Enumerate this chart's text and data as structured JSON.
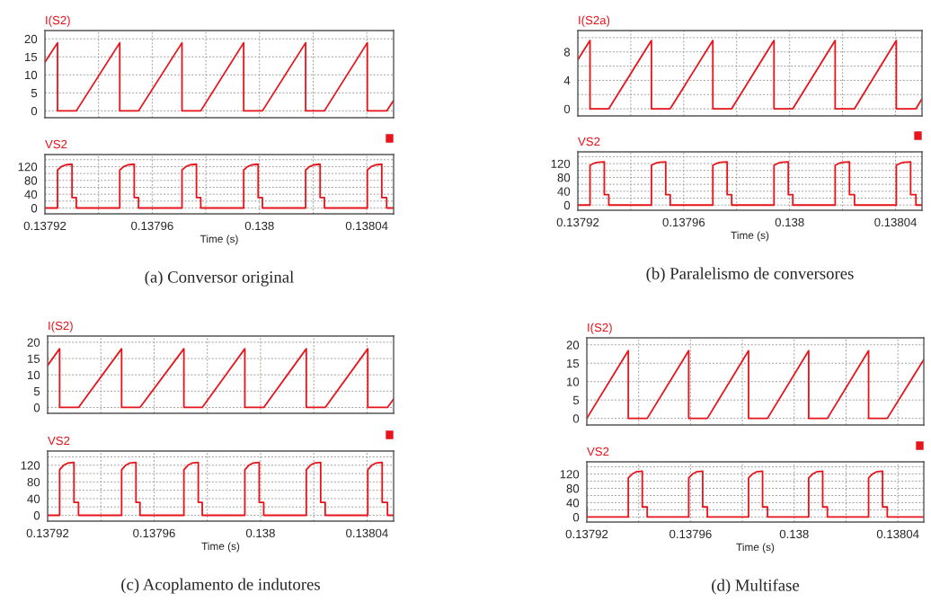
{
  "chart_data": [
    {
      "type": "line",
      "title": "I(S2)",
      "xlim": [
        0.13792,
        0.13805
      ],
      "ylim": [
        -1.9,
        22.3
      ],
      "xticks": [
        0.13792,
        {
          "value": 0.13794,
          "label": null
        },
        0.13796,
        {
          "value": 0.13798,
          "label": null
        },
        0.138,
        {
          "value": 0.13802,
          "label": null
        },
        0.13804
      ],
      "yticks": [
        0,
        5,
        10,
        15,
        20
      ],
      "grid": true,
      "tick_labels": "y",
      "series": [
        {
          "color": "#e8141c",
          "x": [
            0.13792,
            0.1379247,
            0.1379247,
            0.1379317,
            0.1379479,
            0.1379479,
            0.1379549,
            0.1379711,
            0.1379711,
            0.1379781,
            0.1379941,
            0.1379941,
            0.1380011,
            0.1380172,
            0.1380172,
            0.1380242,
            0.1380402,
            0.1380402,
            0.1380474,
            0.13805
          ],
          "values": [
            13.5,
            18.9,
            0,
            0,
            18.9,
            0,
            0,
            18.9,
            0,
            0,
            18.9,
            0,
            0,
            18.9,
            0,
            0,
            18.9,
            0,
            0,
            2.9
          ]
        }
      ]
    },
    {
      "type": "line",
      "title": "VS2",
      "xlabel": "Time (s)",
      "annotations": [
        "(a) Conversor original"
      ],
      "xlim": [
        0.13792,
        0.13805
      ],
      "ylim": [
        -17,
        155
      ],
      "xticks": [
        0.13792,
        {
          "value": 0.13794,
          "label": null
        },
        0.13796,
        {
          "value": 0.13798,
          "label": null
        },
        0.138,
        {
          "value": 0.13802,
          "label": null
        },
        0.13804
      ],
      "yticks": [
        0,
        {
          "value": 20,
          "label": null
        },
        40,
        {
          "value": 60,
          "label": null
        },
        80,
        {
          "value": 100,
          "label": null
        },
        120,
        {
          "value": 140,
          "label": null
        }
      ],
      "grid": true,
      "series": [
        {
          "color": "#e8141c",
          "x": [
            0.13792,
            0.1379247,
            0.1379247,
            0.1379262,
            0.1379277,
            0.1379301,
            0.1379301,
            0.1379317,
            0.1379317,
            0.1379479,
            0.1379479,
            0.1379494,
            0.1379509,
            0.1379533,
            0.1379533,
            0.1379549,
            0.1379549,
            0.1379711,
            0.1379711,
            0.1379726,
            0.1379741,
            0.1379765,
            0.1379765,
            0.1379781,
            0.1379781,
            0.1379941,
            0.1379941,
            0.1379956,
            0.1379971,
            0.1379995,
            0.1379995,
            0.1380011,
            0.1380011,
            0.1380172,
            0.1380172,
            0.1380187,
            0.1380202,
            0.1380226,
            0.1380226,
            0.1380242,
            0.1380242,
            0.1380402,
            0.1380402,
            0.1380417,
            0.1380432,
            0.1380456,
            0.1380456,
            0.1380474,
            0.1380474,
            0.13805
          ],
          "values": [
            0,
            0,
            110,
            120,
            125,
            127,
            30,
            30,
            0,
            0,
            110,
            120,
            125,
            127,
            30,
            30,
            0,
            0,
            110,
            120,
            125,
            127,
            30,
            30,
            0,
            0,
            110,
            120,
            125,
            127,
            30,
            30,
            0,
            0,
            110,
            120,
            125,
            127,
            30,
            30,
            0,
            0,
            110,
            120,
            125,
            127,
            30,
            30,
            0,
            0
          ]
        }
      ]
    },
    {
      "type": "line",
      "title": "I(S2a)",
      "xlim": [
        0.13792,
        0.13805
      ],
      "ylim": [
        -1,
        11
      ],
      "xticks": [
        0.13792,
        {
          "value": 0.13794,
          "label": null
        },
        0.13796,
        {
          "value": 0.13798,
          "label": null
        },
        0.138,
        {
          "value": 0.13802,
          "label": null
        },
        0.13804
      ],
      "yticks": [
        0,
        {
          "value": 2,
          "label": null
        },
        4,
        {
          "value": 6,
          "label": null
        },
        8,
        {
          "value": 10,
          "label": null
        }
      ],
      "grid": true,
      "tick_labels": "y",
      "series": [
        {
          "color": "#e8141c",
          "x": [
            0.13792,
            0.1379246,
            0.1379246,
            0.1379317,
            0.1379478,
            0.1379478,
            0.1379549,
            0.137971,
            0.137971,
            0.1379781,
            0.1379941,
            0.1379941,
            0.1380012,
            0.1380172,
            0.1380172,
            0.1380245,
            0.1380403,
            0.1380403,
            0.1380477,
            0.13805
          ],
          "values": [
            6.9,
            9.6,
            0,
            0,
            9.6,
            0,
            0,
            9.6,
            0,
            0,
            9.6,
            0,
            0,
            9.6,
            0,
            0,
            9.6,
            0,
            0,
            1.4
          ]
        }
      ]
    },
    {
      "type": "line",
      "title": "VS2",
      "xlabel": "Time (s)",
      "annotations": [
        "(b) Paralelismo de conversores"
      ],
      "xlim": [
        0.13792,
        0.13805
      ],
      "ylim": [
        -15,
        154
      ],
      "xticks": [
        0.13792,
        {
          "value": 0.13794,
          "label": null
        },
        0.13796,
        {
          "value": 0.13798,
          "label": null
        },
        0.138,
        {
          "value": 0.13802,
          "label": null
        },
        0.13804
      ],
      "yticks": [
        0,
        {
          "value": 20,
          "label": null
        },
        40,
        {
          "value": 60,
          "label": null
        },
        80,
        {
          "value": 100,
          "label": null
        },
        120,
        {
          "value": 140,
          "label": null
        }
      ],
      "grid": true,
      "series": [
        {
          "color": "#e8141c",
          "x": [
            0.13792,
            0.1379246,
            0.1379246,
            0.1379261,
            0.1379276,
            0.13793,
            0.13793,
            0.1379317,
            0.1379317,
            0.1379478,
            0.1379478,
            0.1379493,
            0.1379508,
            0.1379532,
            0.1379532,
            0.1379549,
            0.1379549,
            0.137971,
            0.137971,
            0.1379725,
            0.137974,
            0.1379764,
            0.1379764,
            0.1379781,
            0.1379781,
            0.1379941,
            0.1379941,
            0.1379956,
            0.1379971,
            0.1379995,
            0.1379995,
            0.1380012,
            0.1380012,
            0.1380172,
            0.1380172,
            0.1380187,
            0.1380202,
            0.1380226,
            0.1380226,
            0.1380245,
            0.1380245,
            0.1380403,
            0.1380403,
            0.1380418,
            0.1380433,
            0.1380457,
            0.1380457,
            0.1380477,
            0.1380477,
            0.13805
          ],
          "values": [
            0,
            0,
            115,
            121,
            124,
            125,
            30,
            30,
            0,
            0,
            115,
            121,
            124,
            125,
            30,
            30,
            0,
            0,
            115,
            121,
            124,
            125,
            30,
            30,
            0,
            0,
            115,
            121,
            124,
            125,
            30,
            30,
            0,
            0,
            115,
            121,
            124,
            125,
            30,
            30,
            0,
            0,
            115,
            121,
            124,
            125,
            30,
            30,
            0,
            0
          ]
        }
      ]
    },
    {
      "type": "line",
      "title": "I(S2)",
      "xlim": [
        0.13792,
        0.13805
      ],
      "ylim": [
        -1.8,
        21.9
      ],
      "xticks": [
        0.13792,
        {
          "value": 0.13794,
          "label": null
        },
        0.13796,
        {
          "value": 0.13798,
          "label": null
        },
        0.138,
        {
          "value": 0.13802,
          "label": null
        },
        0.13804
      ],
      "yticks": [
        0,
        5,
        10,
        15,
        20
      ],
      "grid": true,
      "tick_labels": "y",
      "series": [
        {
          "color": "#e8141c",
          "x": [
            0.13792,
            0.1379245,
            0.1379245,
            0.1379316,
            0.1379478,
            0.1379478,
            0.1379547,
            0.1379712,
            0.1379712,
            0.1379781,
            0.1379941,
            0.1379941,
            0.1380012,
            0.1380172,
            0.1380172,
            0.1380243,
            0.1380403,
            0.1380403,
            0.1380477,
            0.13805
          ],
          "values": [
            12.9,
            18,
            0,
            0,
            18,
            0,
            0,
            18,
            0,
            0,
            18,
            0,
            0,
            18,
            0,
            0,
            18,
            0,
            0,
            2.6
          ]
        }
      ]
    },
    {
      "type": "line",
      "title": "VS2",
      "xlabel": "Time (s)",
      "annotations": [
        "(c) Acoplamento de indutores"
      ],
      "xlim": [
        0.13792,
        0.13805
      ],
      "ylim": [
        -14,
        154
      ],
      "xticks": [
        0.13792,
        {
          "value": 0.13794,
          "label": null
        },
        0.13796,
        {
          "value": 0.13798,
          "label": null
        },
        0.138,
        {
          "value": 0.13802,
          "label": null
        },
        0.13804
      ],
      "yticks": [
        0,
        {
          "value": 20,
          "label": null
        },
        40,
        {
          "value": 60,
          "label": null
        },
        80,
        {
          "value": 100,
          "label": null
        },
        120,
        {
          "value": 140,
          "label": null
        }
      ],
      "grid": true,
      "series": [
        {
          "color": "#e8141c",
          "x": [
            0.13792,
            0.1379245,
            0.1379245,
            0.137926,
            0.1379275,
            0.1379299,
            0.1379299,
            0.1379316,
            0.1379316,
            0.1379478,
            0.1379478,
            0.1379493,
            0.1379508,
            0.1379532,
            0.1379532,
            0.1379547,
            0.1379547,
            0.1379712,
            0.1379712,
            0.1379727,
            0.1379742,
            0.1379766,
            0.1379766,
            0.1379781,
            0.1379781,
            0.1379941,
            0.1379941,
            0.1379956,
            0.1379971,
            0.1379995,
            0.1379995,
            0.1380012,
            0.1380012,
            0.1380172,
            0.1380172,
            0.1380187,
            0.1380202,
            0.1380226,
            0.1380226,
            0.1380243,
            0.1380243,
            0.1380403,
            0.1380403,
            0.1380418,
            0.1380433,
            0.1380457,
            0.1380457,
            0.1380477,
            0.1380477,
            0.13805
          ],
          "values": [
            0,
            0,
            109,
            120,
            125,
            127,
            31,
            31,
            0,
            0,
            109,
            120,
            125,
            127,
            31,
            31,
            0,
            0,
            109,
            120,
            125,
            127,
            31,
            31,
            0,
            0,
            109,
            120,
            125,
            127,
            31,
            31,
            0,
            0,
            109,
            120,
            125,
            127,
            31,
            31,
            0,
            0,
            109,
            120,
            125,
            127,
            31,
            31,
            0,
            0
          ]
        }
      ]
    },
    {
      "type": "line",
      "title": "I(S2)",
      "xlim": [
        0.13792,
        0.13805
      ],
      "ylim": [
        -1.8,
        21.9
      ],
      "xticks": [
        0.13792,
        {
          "value": 0.13794,
          "label": null
        },
        0.13796,
        {
          "value": 0.13798,
          "label": null
        },
        0.138,
        {
          "value": 0.13802,
          "label": null
        },
        0.13804
      ],
      "yticks": [
        0,
        5,
        10,
        15,
        20
      ],
      "grid": true,
      "tick_labels": "y",
      "series": [
        {
          "color": "#e8141c",
          "x": [
            0.13792,
            0.137936,
            0.137936,
            0.1379433,
            0.1379593,
            0.1379593,
            0.1379665,
            0.1379824,
            0.1379824,
            0.1379897,
            0.1380056,
            0.1380056,
            0.1380128,
            0.1380287,
            0.1380287,
            0.1380359,
            0.13805
          ],
          "values": [
            0,
            18.4,
            0,
            0,
            18.4,
            0,
            0,
            18.4,
            0,
            0,
            18.4,
            0,
            0,
            18.4,
            0,
            0,
            16
          ]
        }
      ]
    },
    {
      "type": "line",
      "title": "VS2",
      "xlabel": "Time (s)",
      "annotations": [
        "(d) Multifase"
      ],
      "xlim": [
        0.13792,
        0.13805
      ],
      "ylim": [
        -14,
        154
      ],
      "xticks": [
        0.13792,
        {
          "value": 0.13794,
          "label": null
        },
        0.13796,
        {
          "value": 0.13798,
          "label": null
        },
        0.138,
        {
          "value": 0.13802,
          "label": null
        },
        0.13804
      ],
      "yticks": [
        0,
        {
          "value": 20,
          "label": null
        },
        40,
        {
          "value": 60,
          "label": null
        },
        80,
        {
          "value": 100,
          "label": null
        },
        120,
        {
          "value": 140,
          "label": null
        }
      ],
      "grid": true,
      "series": [
        {
          "color": "#e8141c",
          "x": [
            0.13792,
            0.13792,
            0.137936,
            0.137936,
            0.1379375,
            0.137939,
            0.1379414,
            0.1379414,
            0.1379433,
            0.1379433,
            0.1379593,
            0.1379593,
            0.1379608,
            0.1379623,
            0.1379647,
            0.1379647,
            0.1379665,
            0.1379665,
            0.1379824,
            0.1379824,
            0.1379839,
            0.1379854,
            0.1379878,
            0.1379878,
            0.1379897,
            0.1379897,
            0.1380056,
            0.1380056,
            0.1380071,
            0.1380086,
            0.138011,
            0.138011,
            0.1380128,
            0.1380128,
            0.1380287,
            0.1380287,
            0.1380302,
            0.1380317,
            0.1380341,
            0.1380341,
            0.1380359,
            0.1380359,
            0.13805
          ],
          "values": [
            28,
            0,
            0,
            109,
            120,
            126,
            128,
            28,
            28,
            0,
            0,
            109,
            120,
            126,
            128,
            28,
            28,
            0,
            0,
            109,
            120,
            126,
            128,
            28,
            28,
            0,
            0,
            109,
            120,
            126,
            128,
            28,
            28,
            0,
            0,
            109,
            120,
            126,
            128,
            28,
            28,
            0,
            0
          ]
        }
      ]
    }
  ]
}
